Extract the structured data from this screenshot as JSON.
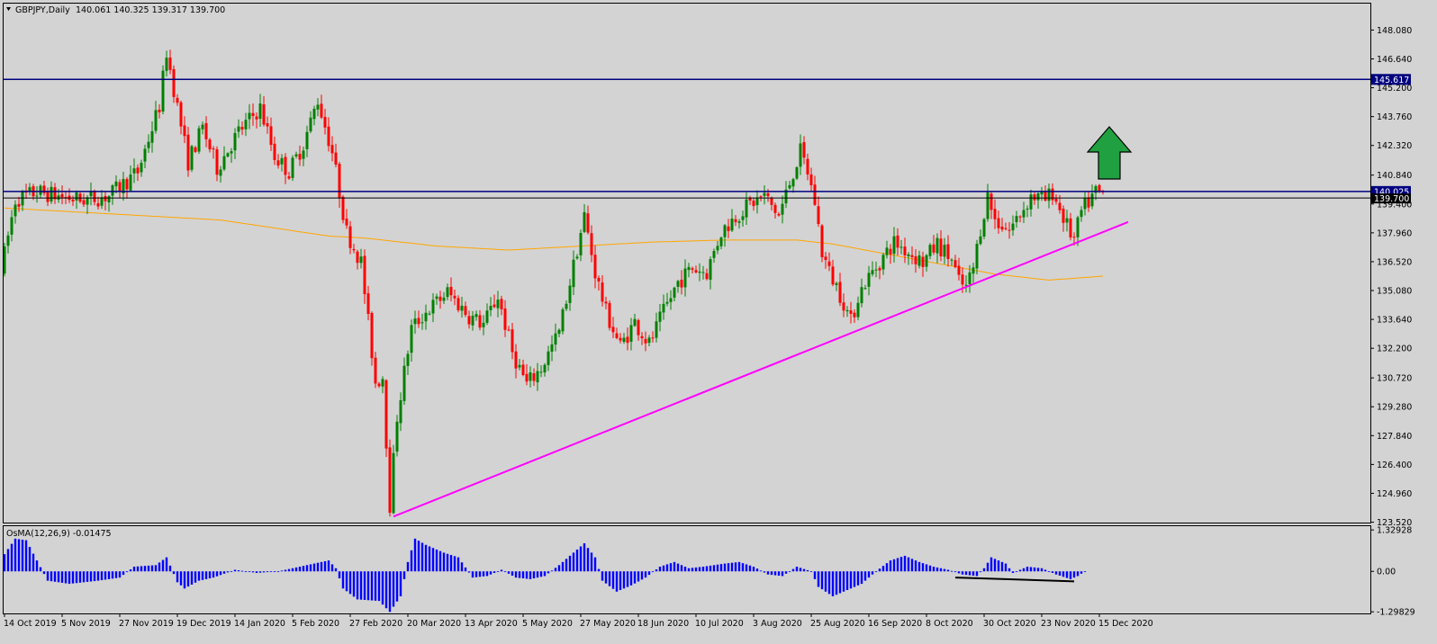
{
  "colors": {
    "background": "#d3d3d3",
    "frame": "#000000",
    "bull_candle": "#008000",
    "bear_candle": "#ff0000",
    "level_line": "#000080",
    "moving_average": "#ffa500",
    "trendline": "#ff00ff",
    "osma_histogram": "#0000ff",
    "divergence_line": "#000000",
    "up_arrow_fill": "#20a040",
    "up_arrow_stroke": "#000000",
    "price_label_bg": "#000080",
    "price_label_text": "#ffffff"
  },
  "chart_data": [
    {
      "type": "candlestick",
      "symbol_header": "GBPJPY,Daily",
      "ohlc_header": "140.061 140.325 139.317 139.700",
      "y_ticks": [
        148.08,
        146.64,
        145.2,
        143.76,
        142.32,
        140.84,
        139.4,
        137.96,
        136.52,
        135.08,
        133.64,
        132.2,
        130.72,
        129.28,
        127.84,
        126.4,
        124.96,
        123.52
      ],
      "y_tick_labels": [
        "148.080",
        "146.640",
        "145.200",
        "143.760",
        "142.320",
        "140.840",
        "139.400",
        "137.960",
        "136.520",
        "135.080",
        "133.640",
        "132.200",
        "130.720",
        "129.280",
        "127.840",
        "126.400",
        "124.960",
        "123.520"
      ],
      "ylim": [
        123.5,
        149.4
      ],
      "x_labels": [
        "14 Oct 2019",
        "5 Nov 2019",
        "27 Nov 2019",
        "19 Dec 2019",
        "14 Jan 2020",
        "5 Feb 2020",
        "27 Feb 2020",
        "20 Mar 2020",
        "13 Apr 2020",
        "5 May 2020",
        "27 May 2020",
        "18 Jun 2020",
        "10 Jul 2020",
        "3 Aug 2020",
        "25 Aug 2020",
        "16 Sep 2020",
        "8 Oct 2020",
        "30 Oct 2020",
        "23 Nov 2020",
        "15 Dec 2020"
      ],
      "x_label_bars": [
        0,
        16,
        32,
        48,
        64,
        80,
        96,
        112,
        128,
        144,
        160,
        176,
        192,
        208,
        224,
        240,
        256,
        272,
        288,
        304
      ],
      "bar_count": 308,
      "price_anchors": [
        [
          0,
          136.0
        ],
        [
          4,
          139.6
        ],
        [
          10,
          140.0
        ],
        [
          22,
          139.6
        ],
        [
          30,
          139.8
        ],
        [
          38,
          141.0
        ],
        [
          44,
          144.3
        ],
        [
          46,
          147.0
        ],
        [
          52,
          141.5
        ],
        [
          56,
          143.2
        ],
        [
          60,
          141.2
        ],
        [
          66,
          143.0
        ],
        [
          72,
          144.2
        ],
        [
          76,
          141.8
        ],
        [
          80,
          141.0
        ],
        [
          84,
          142.4
        ],
        [
          88,
          144.6
        ],
        [
          92,
          142.0
        ],
        [
          96,
          138.0
        ],
        [
          100,
          136.5
        ],
        [
          104,
          130.5
        ],
        [
          106,
          130.8
        ],
        [
          108,
          124.4
        ],
        [
          110,
          128.8
        ],
        [
          114,
          133.2
        ],
        [
          118,
          134.0
        ],
        [
          124,
          135.0
        ],
        [
          130,
          133.8
        ],
        [
          134,
          133.4
        ],
        [
          138,
          134.8
        ],
        [
          142,
          132.0
        ],
        [
          146,
          130.4
        ],
        [
          150,
          131.2
        ],
        [
          155,
          133.0
        ],
        [
          158,
          135.5
        ],
        [
          162,
          138.8
        ],
        [
          165,
          136.0
        ],
        [
          168,
          134.0
        ],
        [
          172,
          132.3
        ],
        [
          176,
          133.5
        ],
        [
          180,
          132.4
        ],
        [
          184,
          134.0
        ],
        [
          188,
          135.5
        ],
        [
          192,
          136.2
        ],
        [
          196,
          136.0
        ],
        [
          200,
          138.0
        ],
        [
          204,
          138.8
        ],
        [
          208,
          139.4
        ],
        [
          212,
          139.8
        ],
        [
          216,
          138.8
        ],
        [
          220,
          141.0
        ],
        [
          222,
          142.0
        ],
        [
          224,
          141.0
        ],
        [
          226,
          139.5
        ],
        [
          228,
          137.0
        ],
        [
          230,
          136.0
        ],
        [
          232,
          135.3
        ],
        [
          234,
          134.5
        ],
        [
          236,
          133.5
        ],
        [
          238,
          134.8
        ],
        [
          240,
          135.5
        ],
        [
          244,
          136.5
        ],
        [
          248,
          137.5
        ],
        [
          252,
          137.0
        ],
        [
          256,
          136.5
        ],
        [
          260,
          137.4
        ],
        [
          264,
          136.6
        ],
        [
          266,
          135.5
        ],
        [
          268,
          135.2
        ],
        [
          270,
          136.2
        ],
        [
          272,
          138.2
        ],
        [
          274,
          139.8
        ],
        [
          276,
          138.6
        ],
        [
          280,
          138.1
        ],
        [
          284,
          139.2
        ],
        [
          286,
          139.8
        ],
        [
          290,
          139.6
        ],
        [
          292,
          140.0
        ],
        [
          296,
          138.3
        ],
        [
          298,
          137.6
        ],
        [
          300,
          139.0
        ],
        [
          302,
          139.5
        ],
        [
          304,
          140.0
        ],
        [
          305,
          139.9
        ]
      ],
      "horizontal_levels": [
        145.617,
        140.025
      ],
      "level_labels": [
        "145.617",
        "140.025"
      ],
      "current_price": 139.7,
      "current_price_label": "139.700",
      "moving_average_anchors": [
        [
          0,
          139.2
        ],
        [
          30,
          138.9
        ],
        [
          60,
          138.6
        ],
        [
          90,
          137.8
        ],
        [
          100,
          137.7
        ],
        [
          120,
          137.3
        ],
        [
          140,
          137.1
        ],
        [
          160,
          137.3
        ],
        [
          180,
          137.5
        ],
        [
          200,
          137.6
        ],
        [
          220,
          137.6
        ],
        [
          230,
          137.4
        ],
        [
          245,
          136.9
        ],
        [
          260,
          136.4
        ],
        [
          275,
          135.9
        ],
        [
          290,
          135.6
        ],
        [
          305,
          135.8
        ]
      ],
      "trendline": {
        "from": [
          108,
          123.8
        ],
        "to": [
          312,
          138.5
        ]
      },
      "annotation": "green up arrow"
    },
    {
      "type": "histogram",
      "indicator_label": "OsMA(12,26,9) -0.01475",
      "y_ticks": [
        1.32928,
        0.0,
        -1.29829
      ],
      "y_tick_labels": [
        "1.32928",
        "0.00",
        "-1.29829"
      ],
      "ylim": [
        -1.35,
        1.45
      ],
      "value_anchors": [
        [
          0,
          0.55
        ],
        [
          3,
          1.05
        ],
        [
          6,
          1.0
        ],
        [
          9,
          0.35
        ],
        [
          12,
          -0.3
        ],
        [
          18,
          -0.4
        ],
        [
          26,
          -0.3
        ],
        [
          32,
          -0.2
        ],
        [
          36,
          0.15
        ],
        [
          42,
          0.2
        ],
        [
          45,
          0.45
        ],
        [
          48,
          -0.35
        ],
        [
          50,
          -0.55
        ],
        [
          54,
          -0.3
        ],
        [
          58,
          -0.2
        ],
        [
          64,
          0.05
        ],
        [
          70,
          -0.05
        ],
        [
          76,
          0.0
        ],
        [
          84,
          0.2
        ],
        [
          90,
          0.35
        ],
        [
          92,
          0.1
        ],
        [
          94,
          -0.55
        ],
        [
          98,
          -0.9
        ],
        [
          104,
          -0.95
        ],
        [
          107,
          -1.3
        ],
        [
          110,
          -0.8
        ],
        [
          112,
          0.3
        ],
        [
          114,
          1.05
        ],
        [
          117,
          0.85
        ],
        [
          122,
          0.6
        ],
        [
          126,
          0.45
        ],
        [
          130,
          -0.2
        ],
        [
          134,
          -0.15
        ],
        [
          138,
          0.05
        ],
        [
          142,
          -0.2
        ],
        [
          146,
          -0.25
        ],
        [
          150,
          -0.15
        ],
        [
          154,
          0.2
        ],
        [
          158,
          0.6
        ],
        [
          161,
          0.9
        ],
        [
          164,
          0.45
        ],
        [
          166,
          -0.3
        ],
        [
          170,
          -0.65
        ],
        [
          174,
          -0.45
        ],
        [
          178,
          -0.2
        ],
        [
          182,
          0.15
        ],
        [
          186,
          0.3
        ],
        [
          190,
          0.1
        ],
        [
          194,
          0.15
        ],
        [
          200,
          0.25
        ],
        [
          204,
          0.3
        ],
        [
          208,
          0.15
        ],
        [
          212,
          -0.1
        ],
        [
          216,
          -0.15
        ],
        [
          220,
          0.15
        ],
        [
          224,
          0.0
        ],
        [
          226,
          -0.5
        ],
        [
          230,
          -0.8
        ],
        [
          234,
          -0.6
        ],
        [
          238,
          -0.4
        ],
        [
          242,
          0.0
        ],
        [
          246,
          0.35
        ],
        [
          250,
          0.5
        ],
        [
          254,
          0.3
        ],
        [
          258,
          0.15
        ],
        [
          262,
          0.05
        ],
        [
          266,
          -0.1
        ],
        [
          270,
          -0.15
        ],
        [
          272,
          0.1
        ],
        [
          274,
          0.45
        ],
        [
          278,
          0.25
        ],
        [
          280,
          -0.05
        ],
        [
          284,
          0.15
        ],
        [
          288,
          0.1
        ],
        [
          292,
          -0.1
        ],
        [
          296,
          -0.25
        ],
        [
          298,
          -0.15
        ],
        [
          300,
          0.0
        ]
      ],
      "divergence_line": {
        "from": [
          264,
          -0.2
        ],
        "to": [
          297,
          -0.32
        ]
      }
    }
  ]
}
